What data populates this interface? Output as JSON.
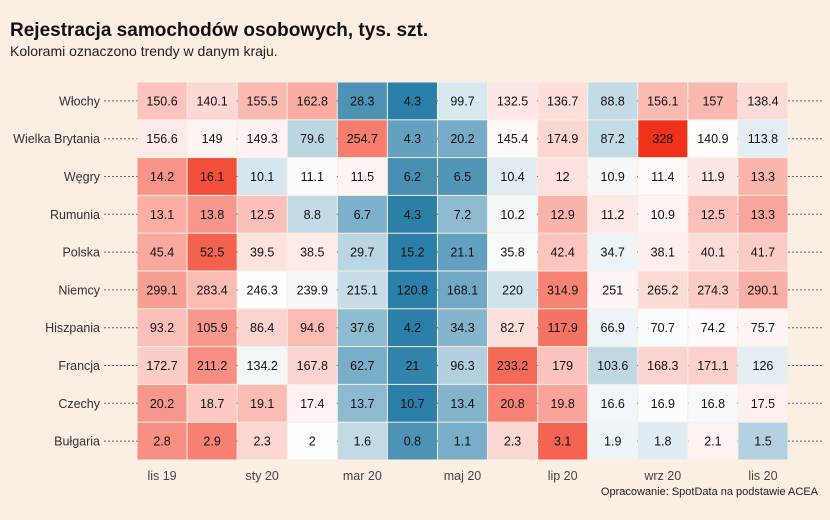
{
  "title": "Rejestracja samochodów osobowych, tys. szt.",
  "subtitle": "Kolorami oznaczono trendy w danym kraju.",
  "caption": "Opracowanie: SpotData na podstawie ACEA",
  "chart_data": {
    "type": "heatmap",
    "x_tick_labels": [
      {
        "label": "lis 19",
        "index": 0
      },
      {
        "label": "sty 20",
        "index": 2
      },
      {
        "label": "mar 20",
        "index": 4
      },
      {
        "label": "maj 20",
        "index": 6
      },
      {
        "label": "lip 20",
        "index": 8
      },
      {
        "label": "wrz 20",
        "index": 10
      },
      {
        "label": "lis 20",
        "index": 12
      }
    ],
    "columns": 13,
    "rows": [
      {
        "name": "Włochy",
        "values": [
          150.6,
          140.1,
          155.5,
          162.8,
          28.3,
          4.3,
          99.7,
          132.5,
          136.7,
          88.8,
          156.1,
          157,
          138.4
        ],
        "labels": [
          "150.6",
          "140.1",
          "155.5",
          "162.8",
          "28.3",
          "4.3",
          "99.7",
          "132.5",
          "136.7",
          "88.8",
          "156.1",
          "157",
          "138.4"
        ]
      },
      {
        "name": "Wielka Brytania",
        "values": [
          156.6,
          149,
          149.3,
          79.6,
          254.7,
          4.3,
          20.2,
          145.4,
          174.9,
          87.2,
          328,
          140.9,
          113.8
        ],
        "labels": [
          "156.6",
          "149",
          "149.3",
          "79.6",
          "254.7",
          "4.3",
          "20.2",
          "145.4",
          "174.9",
          "87.2",
          "328",
          "140.9",
          "113.8"
        ]
      },
      {
        "name": "Węgry",
        "values": [
          14.2,
          16.1,
          10.1,
          11.1,
          11.5,
          6.2,
          6.5,
          10.4,
          12,
          10.9,
          11.4,
          11.9,
          13.3
        ],
        "labels": [
          "14.2",
          "16.1",
          "10.1",
          "11.1",
          "11.5",
          "6.2",
          "6.5",
          "10.4",
          "12",
          "10.9",
          "11.4",
          "11.9",
          "13.3"
        ]
      },
      {
        "name": "Rumunia",
        "values": [
          13.1,
          13.8,
          12.5,
          8.8,
          6.7,
          4.3,
          7.2,
          10.2,
          12.9,
          11.2,
          10.9,
          12.5,
          13.3
        ],
        "labels": [
          "13.1",
          "13.8",
          "12.5",
          "8.8",
          "6.7",
          "4.3",
          "7.2",
          "10.2",
          "12.9",
          "11.2",
          "10.9",
          "12.5",
          "13.3"
        ]
      },
      {
        "name": "Polska",
        "values": [
          45.4,
          52.5,
          39.5,
          38.5,
          29.7,
          15.2,
          21.1,
          35.8,
          42.4,
          34.7,
          38.1,
          40.1,
          41.7
        ],
        "labels": [
          "45.4",
          "52.5",
          "39.5",
          "38.5",
          "29.7",
          "15.2",
          "21.1",
          "35.8",
          "42.4",
          "34.7",
          "38.1",
          "40.1",
          "41.7"
        ]
      },
      {
        "name": "Niemcy",
        "values": [
          299.1,
          283.4,
          246.3,
          239.9,
          215.1,
          120.8,
          168.1,
          220,
          314.9,
          251,
          265.2,
          274.3,
          290.1
        ],
        "labels": [
          "299.1",
          "283.4",
          "246.3",
          "239.9",
          "215.1",
          "120.8",
          "168.1",
          "220",
          "314.9",
          "251",
          "265.2",
          "274.3",
          "290.1"
        ]
      },
      {
        "name": "Hiszpania",
        "values": [
          93.2,
          105.9,
          86.4,
          94.6,
          37.6,
          4.2,
          34.3,
          82.7,
          117.9,
          66.9,
          70.7,
          74.2,
          75.7
        ],
        "labels": [
          "93.2",
          "105.9",
          "86.4",
          "94.6",
          "37.6",
          "4.2",
          "34.3",
          "82.7",
          "117.9",
          "66.9",
          "70.7",
          "74.2",
          "75.7"
        ]
      },
      {
        "name": "Francja",
        "values": [
          172.7,
          211.2,
          134.2,
          167.8,
          62.7,
          21,
          96.3,
          233.2,
          179,
          103.6,
          168.3,
          171.1,
          126
        ],
        "labels": [
          "172.7",
          "211.2",
          "134.2",
          "167.8",
          "62.7",
          "21",
          "96.3",
          "233.2",
          "179",
          "103.6",
          "168.3",
          "171.1",
          "126"
        ]
      },
      {
        "name": "Czechy",
        "values": [
          20.2,
          18.7,
          19.1,
          17.4,
          13.7,
          10.7,
          13.4,
          20.8,
          19.8,
          16.6,
          16.9,
          16.8,
          17.5
        ],
        "labels": [
          "20.2",
          "18.7",
          "19.1",
          "17.4",
          "13.7",
          "10.7",
          "13.4",
          "20.8",
          "19.8",
          "16.6",
          "16.9",
          "16.8",
          "17.5"
        ]
      },
      {
        "name": "Bułgaria",
        "values": [
          2.8,
          2.9,
          2.3,
          2,
          1.6,
          0.8,
          1.1,
          2.3,
          3.1,
          1.9,
          1.8,
          2.1,
          1.5
        ],
        "labels": [
          "2.8",
          "2.9",
          "2.3",
          "2",
          "1.6",
          "0.8",
          "1.1",
          "2.3",
          "3.1",
          "1.9",
          "1.8",
          "2.1",
          "1.5"
        ]
      }
    ],
    "color_scale": {
      "low": "#2b7fa8",
      "mid": "#ffffff",
      "high": "#f0321a"
    },
    "gridlines": "dotted"
  }
}
